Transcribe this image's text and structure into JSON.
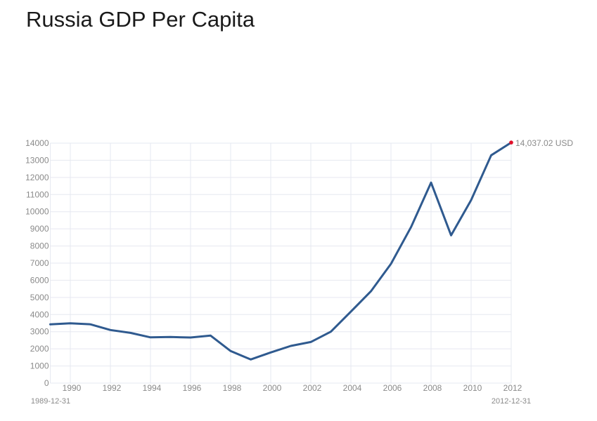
{
  "title": "Russia GDP Per Capita",
  "chart_data": {
    "type": "line",
    "title": "Russia GDP Per Capita",
    "xlabel": "",
    "ylabel": "",
    "unit": "USD",
    "x": [
      1989,
      1990,
      1991,
      1992,
      1993,
      1994,
      1995,
      1996,
      1997,
      1998,
      1999,
      2000,
      2001,
      2002,
      2003,
      2004,
      2005,
      2006,
      2007,
      2008,
      2009,
      2010,
      2011,
      2012
    ],
    "series": [
      {
        "name": "Russia GDP Per Capita",
        "color": "#2f5a8f",
        "values": [
          3430,
          3490,
          3430,
          3100,
          2930,
          2670,
          2690,
          2660,
          2770,
          1870,
          1380,
          1790,
          2170,
          2400,
          3000,
          4170,
          5360,
          6960,
          9100,
          11700,
          8620,
          10680,
          13290,
          14037.02
        ]
      }
    ],
    "xlim": [
      1989,
      2012
    ],
    "ylim": [
      0,
      14000
    ],
    "yticks": [
      0,
      1000,
      2000,
      3000,
      4000,
      5000,
      6000,
      7000,
      8000,
      9000,
      10000,
      11000,
      12000,
      13000,
      14000
    ],
    "xticks": [
      1990,
      1992,
      1994,
      1996,
      1998,
      2000,
      2002,
      2004,
      2006,
      2008,
      2010,
      2012
    ],
    "grid": true,
    "legend": "none",
    "range_start_label": "1989-12-31",
    "range_end_label": "2012-12-31",
    "last_value_label": "14,037.02 USD",
    "end_marker_color": "#e0102a",
    "grid_color": "#e6e8f0"
  }
}
